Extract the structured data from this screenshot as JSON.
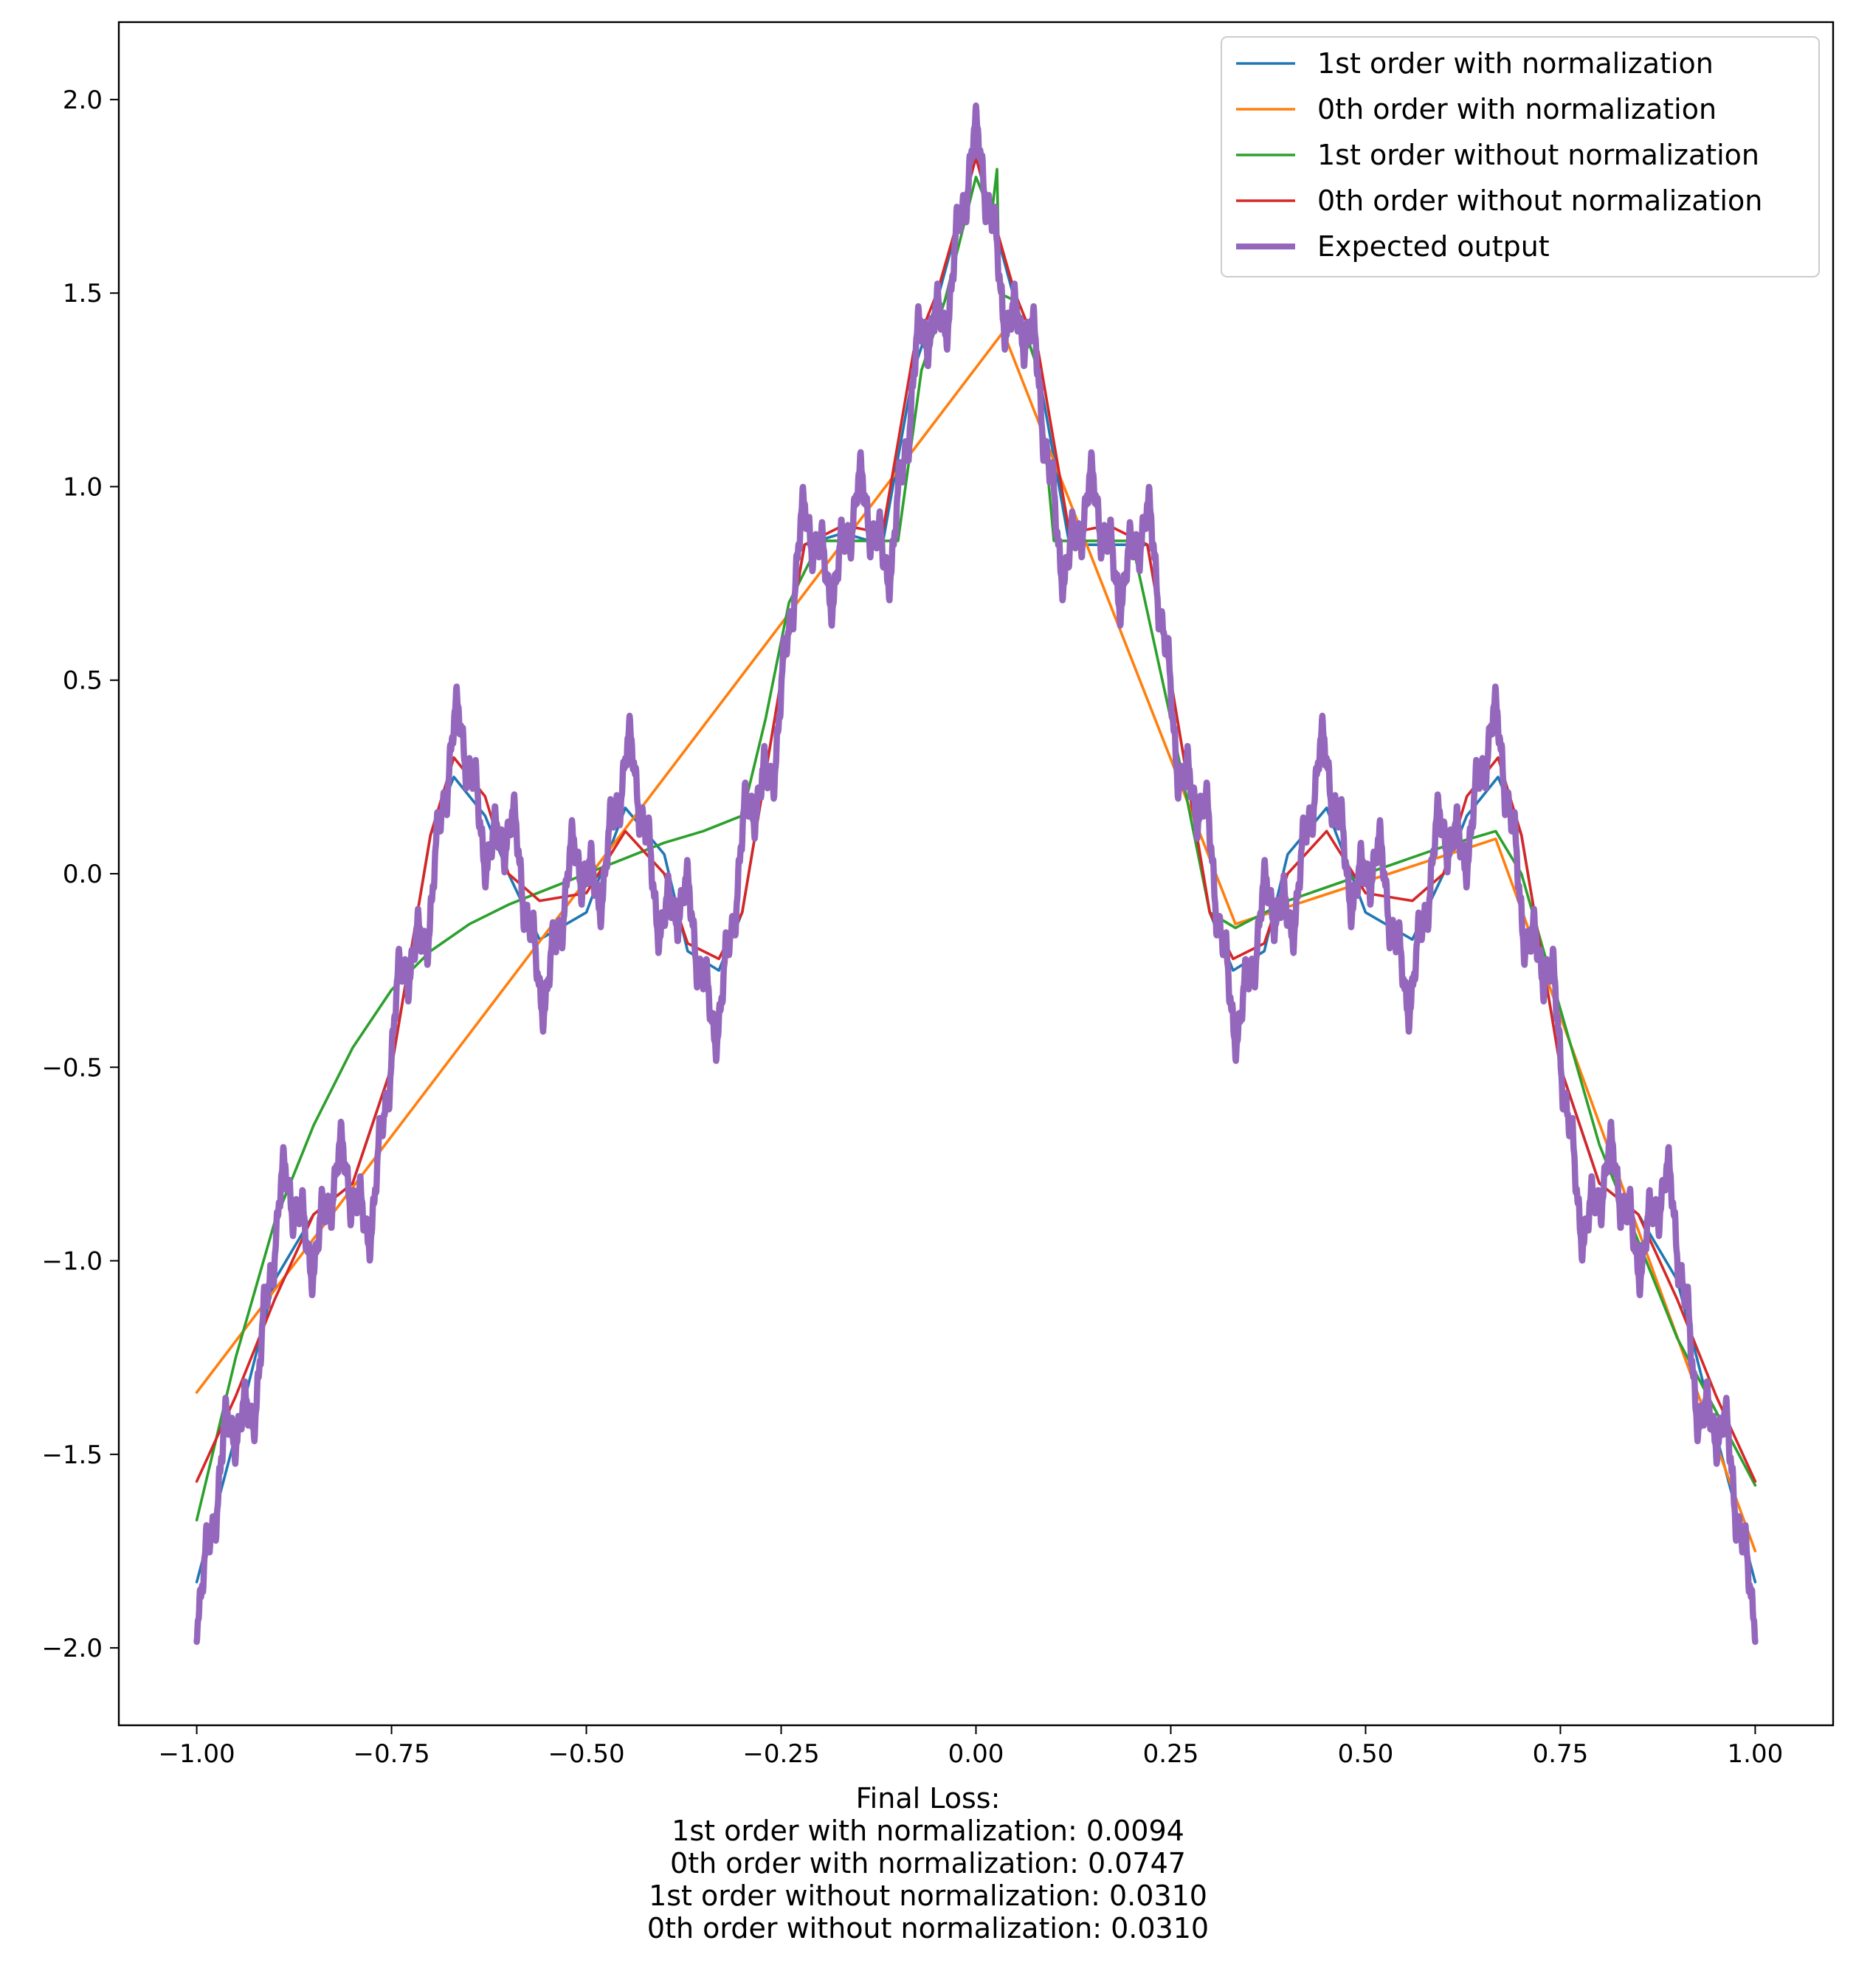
{
  "chart_data": {
    "type": "line",
    "title": "",
    "xlabel": "",
    "ylabel": "",
    "xlim": [
      -1.1,
      1.1
    ],
    "ylim": [
      -2.2,
      2.2
    ],
    "xticks": [
      -1.0,
      -0.75,
      -0.5,
      -0.25,
      0.0,
      0.25,
      0.5,
      0.75,
      1.0
    ],
    "xtick_labels": [
      "−1.00",
      "−0.75",
      "−0.50",
      "−0.25",
      "0.00",
      "0.25",
      "0.50",
      "0.75",
      "1.00"
    ],
    "yticks": [
      -2.0,
      -1.5,
      -1.0,
      -0.5,
      0.0,
      0.5,
      1.0,
      1.5,
      2.0
    ],
    "ytick_labels": [
      "−2.0",
      "−1.5",
      "−1.0",
      "−0.5",
      "0.0",
      "0.5",
      "1.0",
      "1.5",
      "2.0"
    ],
    "grid": false,
    "legend_position": "top-right",
    "series": [
      {
        "name": "1st order with normalization",
        "color": "#1f77b4",
        "x": [
          -1.0,
          -0.95,
          -0.9,
          -0.85,
          -0.8,
          -0.75,
          -0.7,
          -0.67,
          -0.63,
          -0.6,
          -0.56,
          -0.5,
          -0.45,
          -0.4,
          -0.37,
          -0.33,
          -0.3,
          -0.25,
          -0.22,
          -0.17,
          -0.12,
          -0.08,
          -0.05,
          0.0,
          0.05,
          0.08,
          0.12,
          0.17,
          0.22,
          0.25,
          0.3,
          0.33,
          0.37,
          0.4,
          0.45,
          0.5,
          0.56,
          0.6,
          0.63,
          0.67,
          0.7,
          0.75,
          0.8,
          0.85,
          0.9,
          0.95,
          1.0
        ],
        "y": [
          -1.83,
          -1.45,
          -1.05,
          -0.88,
          -0.8,
          -0.5,
          0.1,
          0.25,
          0.15,
          0.0,
          -0.17,
          -0.1,
          0.17,
          0.05,
          -0.2,
          -0.25,
          -0.1,
          0.5,
          0.85,
          0.88,
          0.85,
          1.3,
          1.48,
          1.85,
          1.48,
          1.3,
          0.85,
          0.85,
          0.85,
          0.5,
          -0.1,
          -0.25,
          -0.2,
          0.05,
          0.17,
          -0.1,
          -0.17,
          0.0,
          0.15,
          0.25,
          0.1,
          -0.5,
          -0.8,
          -0.88,
          -1.05,
          -1.45,
          -1.83
        ]
      },
      {
        "name": "0th order with normalization",
        "color": "#ff7f0e",
        "x": [
          -1.0,
          0.035,
          0.333,
          0.667,
          1.0
        ],
        "y": [
          -1.34,
          1.4,
          -0.13,
          0.09,
          -1.75
        ]
      },
      {
        "name": "1st order without normalization",
        "color": "#2ca02c",
        "x": [
          -1.0,
          -0.95,
          -0.9,
          -0.85,
          -0.8,
          -0.75,
          -0.7,
          -0.65,
          -0.6,
          -0.55,
          -0.5,
          -0.45,
          -0.4,
          -0.35,
          -0.3,
          -0.27,
          -0.24,
          -0.2,
          -0.15,
          -0.1,
          -0.07,
          -0.04,
          0.0,
          0.02,
          0.027,
          0.03,
          0.05,
          0.08,
          0.1,
          0.15,
          0.2,
          0.25,
          0.3,
          0.333,
          0.4,
          0.5,
          0.6,
          0.667,
          0.7,
          0.8,
          0.9,
          1.0
        ],
        "y": [
          -1.67,
          -1.25,
          -0.9,
          -0.65,
          -0.45,
          -0.3,
          -0.2,
          -0.13,
          -0.08,
          -0.04,
          0.0,
          0.04,
          0.08,
          0.11,
          0.15,
          0.4,
          0.7,
          0.86,
          0.86,
          0.86,
          1.3,
          1.48,
          1.8,
          1.7,
          1.82,
          1.5,
          1.48,
          1.3,
          0.86,
          0.86,
          0.86,
          0.4,
          -0.1,
          -0.14,
          -0.07,
          0.0,
          0.07,
          0.11,
          0.0,
          -0.7,
          -1.2,
          -1.58
        ]
      },
      {
        "name": "0th order without normalization",
        "color": "#d62728",
        "x": [
          -1.0,
          -0.95,
          -0.9,
          -0.85,
          -0.8,
          -0.75,
          -0.7,
          -0.67,
          -0.63,
          -0.6,
          -0.56,
          -0.5,
          -0.45,
          -0.4,
          -0.37,
          -0.33,
          -0.3,
          -0.25,
          -0.22,
          -0.17,
          -0.12,
          -0.08,
          -0.05,
          0.0,
          0.05,
          0.08,
          0.12,
          0.17,
          0.22,
          0.25,
          0.3,
          0.33,
          0.37,
          0.4,
          0.45,
          0.5,
          0.56,
          0.6,
          0.63,
          0.67,
          0.7,
          0.75,
          0.8,
          0.85,
          0.9,
          0.95,
          1.0
        ],
        "y": [
          -1.57,
          -1.35,
          -1.1,
          -0.88,
          -0.8,
          -0.5,
          0.1,
          0.3,
          0.2,
          0.0,
          -0.07,
          -0.05,
          0.11,
          0.0,
          -0.18,
          -0.22,
          -0.1,
          0.5,
          0.85,
          0.9,
          0.88,
          1.35,
          1.5,
          1.85,
          1.5,
          1.35,
          0.88,
          0.9,
          0.85,
          0.5,
          -0.1,
          -0.22,
          -0.18,
          0.0,
          0.11,
          -0.05,
          -0.07,
          0.0,
          0.2,
          0.3,
          0.1,
          -0.5,
          -0.8,
          -0.88,
          -1.1,
          -1.35,
          -1.57
        ]
      },
      {
        "name": "Expected output",
        "color": "#9467bd",
        "function": "weierstrass-like fractal",
        "x_range": [
          -1.0,
          1.0
        ],
        "y_min": -2.0,
        "y_max": 2.0
      }
    ],
    "annotations": [
      "Final Loss:",
      "1st order with normalization: 0.0094",
      "0th order with normalization: 0.0747",
      "1st order without normalization: 0.0310",
      "0th order without normalization: 0.0310"
    ]
  }
}
